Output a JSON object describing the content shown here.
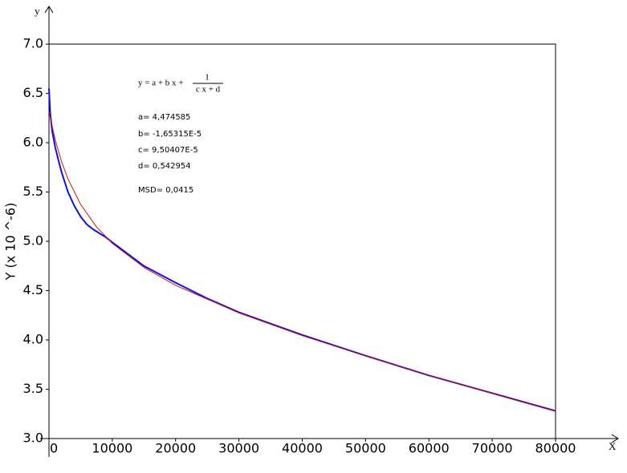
{
  "chart_data": {
    "type": "line",
    "x_label": "X",
    "y_label": "Y (x 10 ^-6)",
    "y_arrow_label": "y",
    "xlim": [
      0,
      80000
    ],
    "ylim": [
      3.0,
      7.0
    ],
    "xticks": [
      0,
      10000,
      20000,
      30000,
      40000,
      50000,
      60000,
      70000,
      80000
    ],
    "yticks": [
      {
        "value": 3,
        "label": "3.0"
      },
      3.5,
      {
        "value": 4,
        "label": "4.0"
      },
      4.5,
      {
        "value": 5,
        "label": "5.0"
      },
      5.5,
      {
        "value": 6,
        "label": "6.0"
      },
      6.5,
      {
        "value": 7,
        "label": "7.0"
      }
    ],
    "formula": {
      "lhs": "y = a + b x +",
      "numerator": "1",
      "denominator": "c x + d"
    },
    "annotations": [
      "a= 4,474585",
      "b= -1,65315E-5",
      "c= 9,50407E-5",
      "d= 0,542954",
      "MSD= 0,0415"
    ],
    "series": [
      {
        "color": "#1010e0",
        "width": 2,
        "x": [
          0,
          200,
          500,
          1000,
          1500,
          2000,
          3000,
          4000,
          5000,
          6000,
          7000,
          8000,
          9000,
          10000,
          15000,
          20000,
          25000,
          30000,
          40000,
          50000,
          60000,
          70000,
          80000
        ],
        "values": [
          6.55,
          6.3,
          6.12,
          5.95,
          5.82,
          5.7,
          5.5,
          5.36,
          5.25,
          5.17,
          5.12,
          5.08,
          5.04,
          4.99,
          4.75,
          4.58,
          4.42,
          4.28,
          4.05,
          3.84,
          3.64,
          3.46,
          3.28
        ]
      },
      {
        "color": "#d01010",
        "width": 1,
        "x": [
          0,
          1000,
          2000,
          3000,
          5000,
          7500,
          10000,
          15000,
          20000,
          30000,
          40000,
          50000,
          60000,
          70000,
          80000
        ],
        "values": [
          6.316,
          6.0255,
          5.8057,
          5.6326,
          5.374,
          5.1469,
          4.9789,
          4.7346,
          4.5532,
          4.2733,
          4.0435,
          3.837,
          3.6428,
          3.4564,
          3.2749
        ]
      }
    ]
  }
}
